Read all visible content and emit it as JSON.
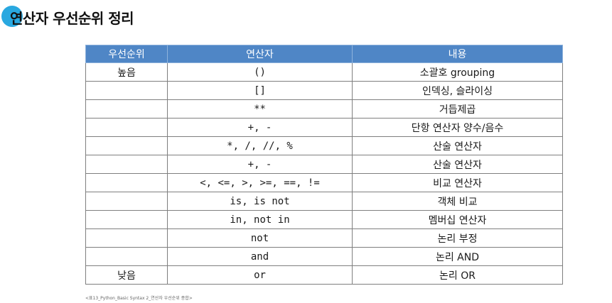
{
  "title": "연산자 우선순위 정리",
  "table": {
    "headers": [
      "우선순위",
      "연산자",
      "내용"
    ],
    "rows": [
      {
        "rank": "높음",
        "operator": "()",
        "description": "소괄호 grouping"
      },
      {
        "rank": "",
        "operator": "[]",
        "description": "인덱싱, 슬라이싱"
      },
      {
        "rank": "",
        "operator": "**",
        "description": "거듭제곱"
      },
      {
        "rank": "",
        "operator": "+, -",
        "description": "단항 연산자 양수/음수"
      },
      {
        "rank": "",
        "operator": "*, /, //, %",
        "description": "산술 연산자"
      },
      {
        "rank": "",
        "operator": "+, -",
        "description": "산술 연산자"
      },
      {
        "rank": "",
        "operator": "<, <=, >, >=, ==, !=",
        "description": "비교 연산자"
      },
      {
        "rank": "",
        "operator": "is, is not",
        "description": "객체 비교"
      },
      {
        "rank": "",
        "operator": "in, not in",
        "description": "멤버십 연산자"
      },
      {
        "rank": "",
        "operator": "not",
        "description": "논리 부정"
      },
      {
        "rank": "",
        "operator": "and",
        "description": "논리 AND"
      },
      {
        "rank": "낮음",
        "operator": "or",
        "description": "논리 OR"
      }
    ]
  },
  "caption": "<표13_Python_Basic Syntax 2_연산자 우선순위 종합>",
  "colors": {
    "header_bg": "#4f86c6",
    "title_dot": "#29a8e0"
  }
}
